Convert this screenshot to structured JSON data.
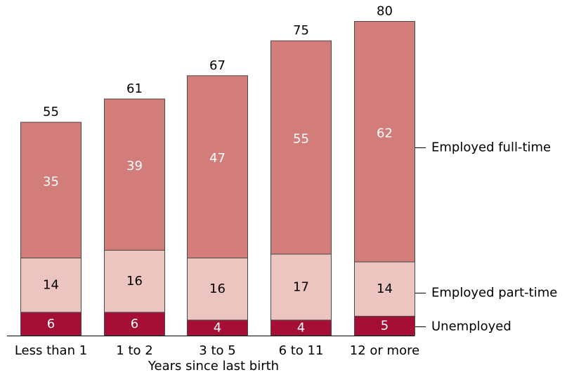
{
  "chart_data": {
    "type": "bar",
    "stacked": true,
    "xlabel": "Years since last birth",
    "ylabel": "",
    "categories": [
      "Less than 1",
      "1 to 2",
      "3 to 5",
      "6 to 11",
      "12 or more"
    ],
    "series": [
      {
        "name": "Unemployed",
        "values": [
          6,
          6,
          4,
          4,
          5
        ],
        "color": "#a50f35",
        "label_color": "#ffffff"
      },
      {
        "name": "Employed part-time",
        "values": [
          14,
          16,
          16,
          17,
          14
        ],
        "color": "#ecc5c0",
        "label_color": "#000000"
      },
      {
        "name": "Employed full-time",
        "values": [
          35,
          39,
          47,
          55,
          62
        ],
        "color": "#d27d7a",
        "label_color": "#ffffff"
      }
    ],
    "totals": [
      55,
      61,
      67,
      75,
      80
    ],
    "ylim": [
      0,
      80
    ],
    "legend": "right",
    "grid": false
  }
}
